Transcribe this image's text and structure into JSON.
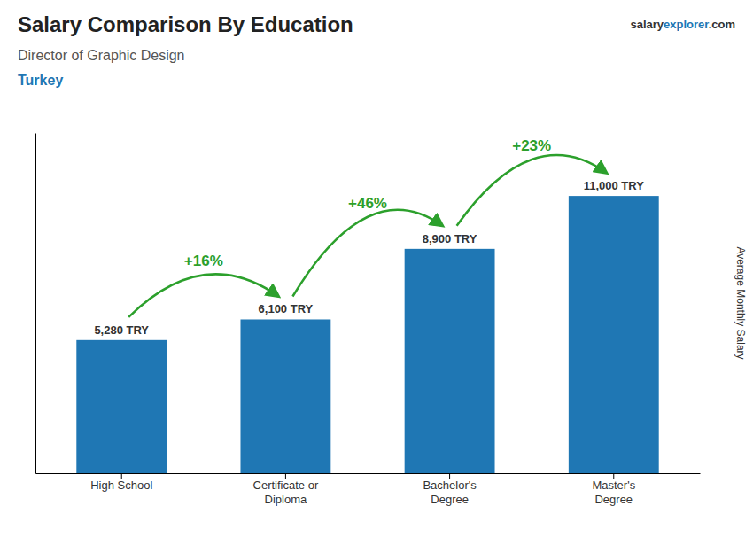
{
  "chart_data": {
    "type": "bar",
    "title": "Salary Comparison By Education",
    "subtitle": "Director of Graphic Design",
    "y_label": "Average Monthly Salary",
    "categories": [
      "High School",
      "Certificate or\nDiploma",
      "Bachelor's\nDegree",
      "Master's\nDegree"
    ],
    "values": [
      5280,
      6100,
      8900,
      11000
    ],
    "value_labels": [
      "5,280 TRY",
      "6,100 TRY",
      "8,900 TRY",
      "11,000 TRY"
    ],
    "data_labels": true,
    "ylim": [
      0,
      13500
    ],
    "tick_labels": "x",
    "grid": false,
    "annotations": {
      "country": "Turkey",
      "source": [
        "salary",
        "explorer",
        ".com"
      ],
      "changes": [
        "+16%",
        "+46%",
        "+23%"
      ]
    }
  }
}
